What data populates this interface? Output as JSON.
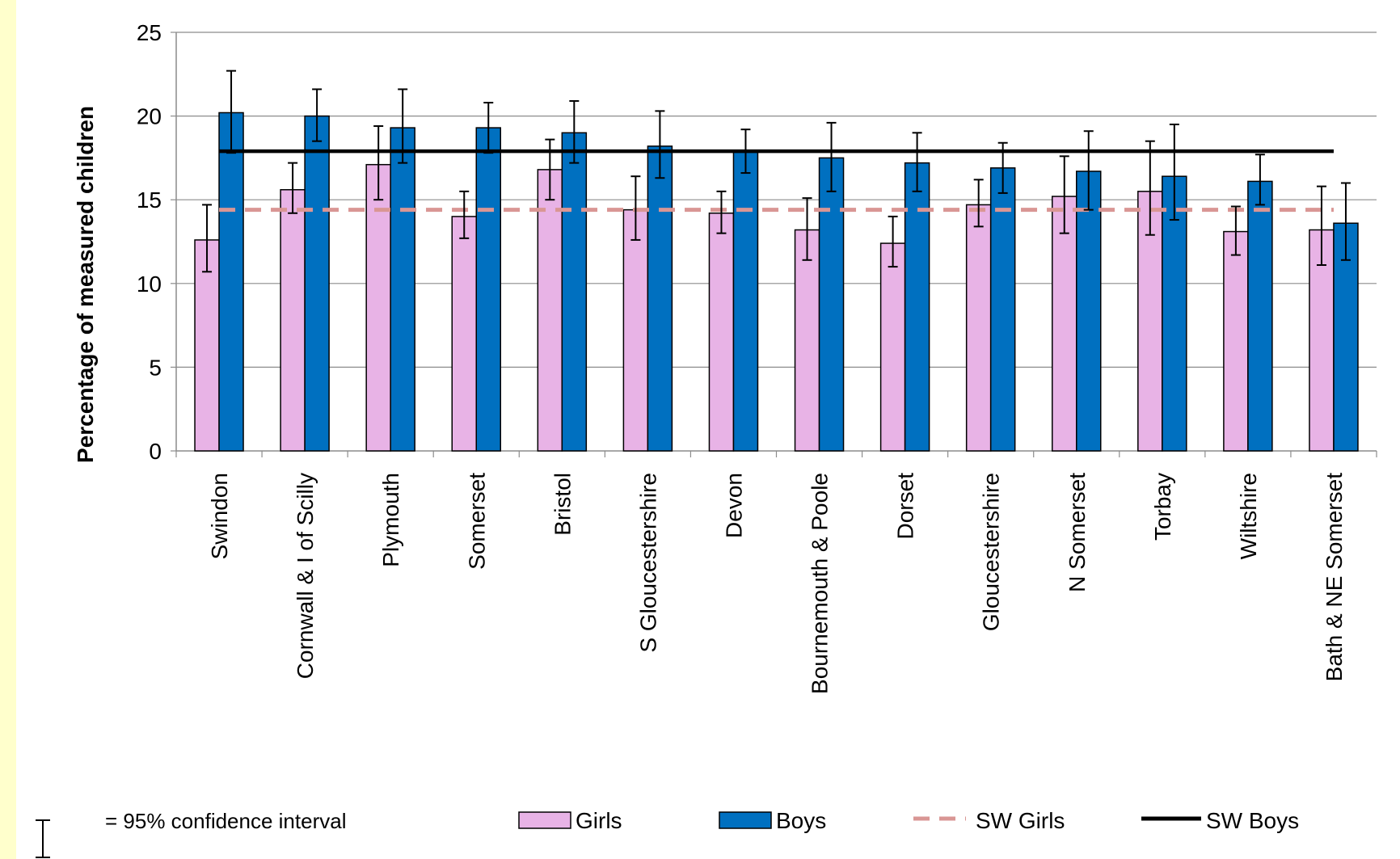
{
  "chart_data": {
    "type": "bar",
    "title": "",
    "xlabel": "",
    "ylabel": "Percentage of measured children",
    "ylim": [
      0,
      25
    ],
    "yticks": [
      0,
      5,
      10,
      15,
      20,
      25
    ],
    "grid": true,
    "legend_position": "bottom",
    "categories": [
      "Swindon",
      "Cornwall & I of Scilly",
      "Plymouth",
      "Somerset",
      "Bristol",
      "S Gloucestershire",
      "Devon",
      "Bournemouth & Poole",
      "Dorset",
      "Gloucestershire",
      "N Somerset",
      "Torbay",
      "Wiltshire",
      "Bath & NE Somerset"
    ],
    "series": [
      {
        "name": "Girls",
        "color": "#e8b3e6",
        "values": [
          12.6,
          15.6,
          17.1,
          14.0,
          16.8,
          14.4,
          14.2,
          13.2,
          12.4,
          14.7,
          15.2,
          15.5,
          13.1,
          13.2
        ],
        "ci_low": [
          10.7,
          14.2,
          15.0,
          12.7,
          15.0,
          12.6,
          13.0,
          11.4,
          11.0,
          13.4,
          13.0,
          12.9,
          11.7,
          11.1
        ],
        "ci_high": [
          14.7,
          17.2,
          19.4,
          15.5,
          18.6,
          16.4,
          15.5,
          15.1,
          14.0,
          16.2,
          17.6,
          18.5,
          14.6,
          15.8
        ]
      },
      {
        "name": "Boys",
        "color": "#0070c0",
        "values": [
          20.2,
          20.0,
          19.3,
          19.3,
          19.0,
          18.2,
          17.9,
          17.5,
          17.2,
          16.9,
          16.7,
          16.4,
          16.1,
          13.6
        ],
        "ci_low": [
          17.8,
          18.5,
          17.2,
          17.8,
          17.2,
          16.3,
          16.6,
          15.5,
          15.5,
          15.4,
          14.4,
          13.8,
          14.7,
          11.4
        ],
        "ci_high": [
          22.7,
          21.6,
          21.6,
          20.8,
          20.9,
          20.3,
          19.2,
          19.6,
          19.0,
          18.4,
          19.1,
          19.5,
          17.7,
          16.0
        ]
      }
    ],
    "reference_lines": [
      {
        "name": "SW Girls",
        "value": 14.4,
        "color": "#d99694",
        "style": "dashed"
      },
      {
        "name": "SW Boys",
        "value": 17.9,
        "color": "#000000",
        "style": "solid"
      }
    ],
    "error_bar_note": "= 95% confidence interval"
  }
}
